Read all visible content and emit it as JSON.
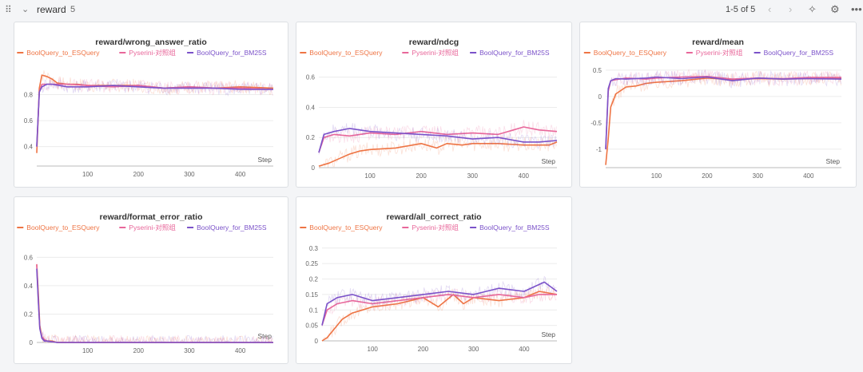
{
  "section": {
    "title": "reward",
    "count": "5",
    "pagination": "1-5 of 5",
    "icons": [
      "drag-handle-icon",
      "chevron-down-icon",
      "chevron-left-icon",
      "chevron-right-icon",
      "sparkle-icon",
      "gear-icon",
      "more-icon"
    ]
  },
  "colors": {
    "BoolQuery_to_ESQuery": "#ee7444",
    "Pyserini-对照组": "#e8679a",
    "BoolQuery_for_BM25S": "#7b52c9"
  },
  "chart_data": [
    {
      "type": "line",
      "title": "reward/wrong_answer_ratio",
      "xlabel": "Step",
      "xlim": [
        0,
        465
      ],
      "ylim": [
        0.25,
        1.0
      ],
      "xticks": [
        100,
        200,
        300,
        400
      ],
      "yticks": [
        0.4,
        0.6,
        0.8
      ],
      "series": [
        {
          "name": "BoolQuery_to_ESQuery",
          "x": [
            0,
            5,
            10,
            20,
            30,
            40,
            60,
            80,
            100,
            150,
            200,
            250,
            300,
            350,
            400,
            465
          ],
          "values": [
            0.35,
            0.85,
            0.95,
            0.94,
            0.92,
            0.89,
            0.88,
            0.88,
            0.87,
            0.87,
            0.87,
            0.85,
            0.86,
            0.85,
            0.86,
            0.85
          ]
        },
        {
          "name": "Pyserini-对照组",
          "x": [
            0,
            5,
            10,
            20,
            30,
            60,
            100,
            150,
            200,
            250,
            300,
            350,
            400,
            465
          ],
          "values": [
            0.4,
            0.82,
            0.88,
            0.88,
            0.88,
            0.88,
            0.87,
            0.86,
            0.87,
            0.85,
            0.86,
            0.85,
            0.85,
            0.84
          ]
        },
        {
          "name": "BoolQuery_for_BM25S",
          "x": [
            0,
            5,
            10,
            20,
            30,
            60,
            100,
            150,
            200,
            250,
            300,
            350,
            400,
            465
          ],
          "values": [
            0.4,
            0.82,
            0.86,
            0.88,
            0.88,
            0.86,
            0.86,
            0.87,
            0.86,
            0.85,
            0.85,
            0.85,
            0.84,
            0.84
          ]
        }
      ]
    },
    {
      "type": "line",
      "title": "reward/ndcg",
      "xlabel": "Step",
      "xlim": [
        0,
        465
      ],
      "ylim": [
        0,
        0.72
      ],
      "xticks": [
        100,
        200,
        300,
        400
      ],
      "yticks": [
        0,
        0.2,
        0.4,
        0.6
      ],
      "series": [
        {
          "name": "BoolQuery_to_ESQuery",
          "x": [
            0,
            20,
            40,
            60,
            80,
            100,
            150,
            200,
            230,
            250,
            280,
            300,
            350,
            400,
            450,
            465
          ],
          "values": [
            0.01,
            0.03,
            0.06,
            0.09,
            0.11,
            0.12,
            0.13,
            0.16,
            0.13,
            0.16,
            0.15,
            0.16,
            0.16,
            0.15,
            0.15,
            0.17
          ]
        },
        {
          "name": "Pyserini-对照组",
          "x": [
            0,
            10,
            30,
            60,
            100,
            150,
            200,
            250,
            300,
            350,
            380,
            400,
            430,
            465
          ],
          "values": [
            0.1,
            0.2,
            0.22,
            0.21,
            0.23,
            0.22,
            0.24,
            0.22,
            0.23,
            0.22,
            0.25,
            0.27,
            0.25,
            0.24
          ]
        },
        {
          "name": "BoolQuery_for_BM25S",
          "x": [
            0,
            10,
            30,
            60,
            100,
            150,
            200,
            250,
            300,
            350,
            400,
            430,
            465
          ],
          "values": [
            0.1,
            0.22,
            0.24,
            0.26,
            0.24,
            0.23,
            0.22,
            0.21,
            0.19,
            0.2,
            0.17,
            0.17,
            0.18
          ]
        }
      ]
    },
    {
      "type": "line",
      "title": "reward/mean",
      "xlabel": "Step",
      "xlim": [
        0,
        465
      ],
      "ylim": [
        -1.35,
        0.65
      ],
      "xticks": [
        100,
        200,
        300,
        400
      ],
      "yticks": [
        -1,
        -0.5,
        0,
        0.5
      ],
      "series": [
        {
          "name": "BoolQuery_to_ESQuery",
          "x": [
            0,
            5,
            10,
            20,
            40,
            60,
            80,
            100,
            150,
            200,
            250,
            300,
            350,
            400,
            465
          ],
          "values": [
            -1.3,
            -0.8,
            -0.2,
            0.05,
            0.18,
            0.2,
            0.25,
            0.27,
            0.3,
            0.35,
            0.32,
            0.34,
            0.33,
            0.34,
            0.35
          ]
        },
        {
          "name": "Pyserini-对照组",
          "x": [
            0,
            5,
            10,
            20,
            40,
            80,
            100,
            150,
            200,
            250,
            300,
            350,
            400,
            465
          ],
          "values": [
            -1.0,
            0.1,
            0.3,
            0.32,
            0.35,
            0.33,
            0.35,
            0.37,
            0.38,
            0.33,
            0.35,
            0.34,
            0.36,
            0.36
          ]
        },
        {
          "name": "BoolQuery_for_BM25S",
          "x": [
            0,
            5,
            10,
            20,
            40,
            80,
            100,
            150,
            200,
            250,
            300,
            350,
            400,
            465
          ],
          "values": [
            -1.0,
            0.15,
            0.3,
            0.34,
            0.33,
            0.35,
            0.37,
            0.34,
            0.37,
            0.3,
            0.35,
            0.33,
            0.34,
            0.33
          ]
        }
      ]
    },
    {
      "type": "line",
      "title": "reward/format_error_ratio",
      "xlabel": "Step",
      "xlim": [
        0,
        465
      ],
      "ylim": [
        0,
        0.72
      ],
      "xticks": [
        100,
        200,
        300,
        400
      ],
      "yticks": [
        0,
        0.2,
        0.4,
        0.6
      ],
      "series": [
        {
          "name": "BoolQuery_to_ESQuery",
          "x": [
            0,
            3,
            6,
            10,
            15,
            20,
            30,
            40,
            100,
            200,
            300,
            400,
            465
          ],
          "values": [
            0.55,
            0.35,
            0.12,
            0.04,
            0.02,
            0.01,
            0.01,
            0.0,
            0.0,
            0.0,
            0.0,
            0.0,
            0.0
          ]
        },
        {
          "name": "Pyserini-对照组",
          "x": [
            0,
            3,
            6,
            10,
            15,
            20,
            40,
            100,
            200,
            300,
            400,
            465
          ],
          "values": [
            0.55,
            0.3,
            0.1,
            0.04,
            0.02,
            0.01,
            0.0,
            0.0,
            0.0,
            0.0,
            0.0,
            0.0
          ]
        },
        {
          "name": "BoolQuery_for_BM25S",
          "x": [
            0,
            3,
            6,
            10,
            15,
            20,
            40,
            100,
            200,
            300,
            400,
            465
          ],
          "values": [
            0.52,
            0.3,
            0.1,
            0.03,
            0.01,
            0.01,
            0.0,
            0.0,
            0.0,
            0.0,
            0.0,
            0.0
          ]
        }
      ]
    },
    {
      "type": "line",
      "title": "reward/all_correct_ratio",
      "xlabel": "Step",
      "xlim": [
        0,
        465
      ],
      "ylim": [
        0,
        0.32
      ],
      "xticks": [
        100,
        200,
        300,
        400
      ],
      "yticks": [
        0,
        0.05,
        0.1,
        0.15,
        0.2,
        0.25,
        0.3
      ],
      "series": [
        {
          "name": "BoolQuery_to_ESQuery",
          "x": [
            0,
            10,
            20,
            30,
            40,
            60,
            80,
            100,
            150,
            200,
            230,
            260,
            280,
            300,
            350,
            400,
            430,
            465
          ],
          "values": [
            0.0,
            0.01,
            0.03,
            0.05,
            0.07,
            0.09,
            0.1,
            0.11,
            0.12,
            0.14,
            0.11,
            0.15,
            0.12,
            0.14,
            0.13,
            0.14,
            0.16,
            0.15
          ]
        },
        {
          "name": "Pyserini-对照组",
          "x": [
            0,
            10,
            30,
            60,
            100,
            150,
            200,
            250,
            300,
            350,
            400,
            430,
            465
          ],
          "values": [
            0.05,
            0.1,
            0.12,
            0.13,
            0.12,
            0.13,
            0.14,
            0.15,
            0.14,
            0.15,
            0.14,
            0.15,
            0.15
          ]
        },
        {
          "name": "BoolQuery_for_BM25S",
          "x": [
            0,
            10,
            30,
            60,
            100,
            150,
            200,
            250,
            300,
            350,
            400,
            440,
            465
          ],
          "values": [
            0.05,
            0.12,
            0.14,
            0.15,
            0.13,
            0.14,
            0.15,
            0.16,
            0.15,
            0.17,
            0.16,
            0.19,
            0.16
          ]
        }
      ]
    }
  ]
}
